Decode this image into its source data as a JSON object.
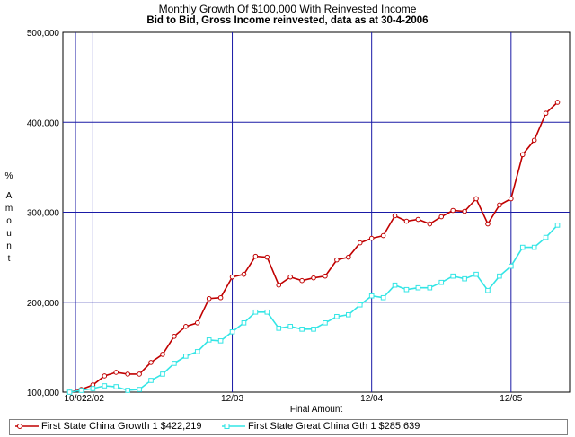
{
  "chart_data": {
    "type": "line",
    "title": "Monthly Growth Of $100,000 With Reinvested Income",
    "subtitle": "Bid to Bid, Gross Income reinvested, data as at 30-4-2006",
    "xlabel": "Final Amount",
    "ylabel": "% Amount",
    "ylim": [
      100000,
      500000
    ],
    "yticks": [
      "100,000",
      "200,000",
      "300,000",
      "400,000",
      "500,000"
    ],
    "xticks": [
      "10/02",
      "12/02",
      "12/03",
      "12/04",
      "12/05"
    ],
    "x": [
      "10/02",
      "11/02",
      "12/02",
      "01/03",
      "02/03",
      "03/03",
      "04/03",
      "05/03",
      "06/03",
      "07/03",
      "08/03",
      "09/03",
      "10/03",
      "11/03",
      "12/03",
      "01/04",
      "02/04",
      "03/04",
      "04/04",
      "05/04",
      "06/04",
      "07/04",
      "08/04",
      "09/04",
      "10/04",
      "11/04",
      "12/04",
      "01/05",
      "02/05",
      "03/05",
      "04/05",
      "05/05",
      "06/05",
      "07/05",
      "08/05",
      "09/05",
      "10/05",
      "11/05",
      "12/05",
      "01/06",
      "02/06",
      "03/06",
      "04/06"
    ],
    "series": [
      {
        "name": "First State China Growth 1 $422,219",
        "color": "#c00000",
        "values": [
          100000,
          103000,
          108000,
          118000,
          122000,
          120000,
          120000,
          133000,
          142000,
          162000,
          173000,
          177000,
          204000,
          205000,
          228000,
          231000,
          251000,
          250000,
          219000,
          228000,
          224000,
          227000,
          229000,
          247000,
          250000,
          266000,
          271000,
          274000,
          296000,
          290000,
          292000,
          287000,
          295000,
          302000,
          301000,
          315000,
          287000,
          308000,
          315000,
          364000,
          380000,
          410000,
          422219
        ]
      },
      {
        "name": "First State Great China Gth 1 $285,639",
        "color": "#33e5e5",
        "values": [
          100000,
          102000,
          104000,
          107000,
          106000,
          102000,
          103000,
          113000,
          120000,
          132000,
          140000,
          145000,
          158000,
          157000,
          167000,
          177000,
          189000,
          189000,
          171000,
          173000,
          170000,
          170000,
          177000,
          184000,
          186000,
          197000,
          207000,
          205000,
          219000,
          214000,
          216000,
          216000,
          222000,
          229000,
          226000,
          231000,
          213000,
          229000,
          240000,
          261000,
          261000,
          272000,
          285639
        ]
      }
    ],
    "grid": true,
    "legend_position": "bottom"
  },
  "colors": {
    "grid": "#1a1aa6",
    "axis": "#000000"
  }
}
